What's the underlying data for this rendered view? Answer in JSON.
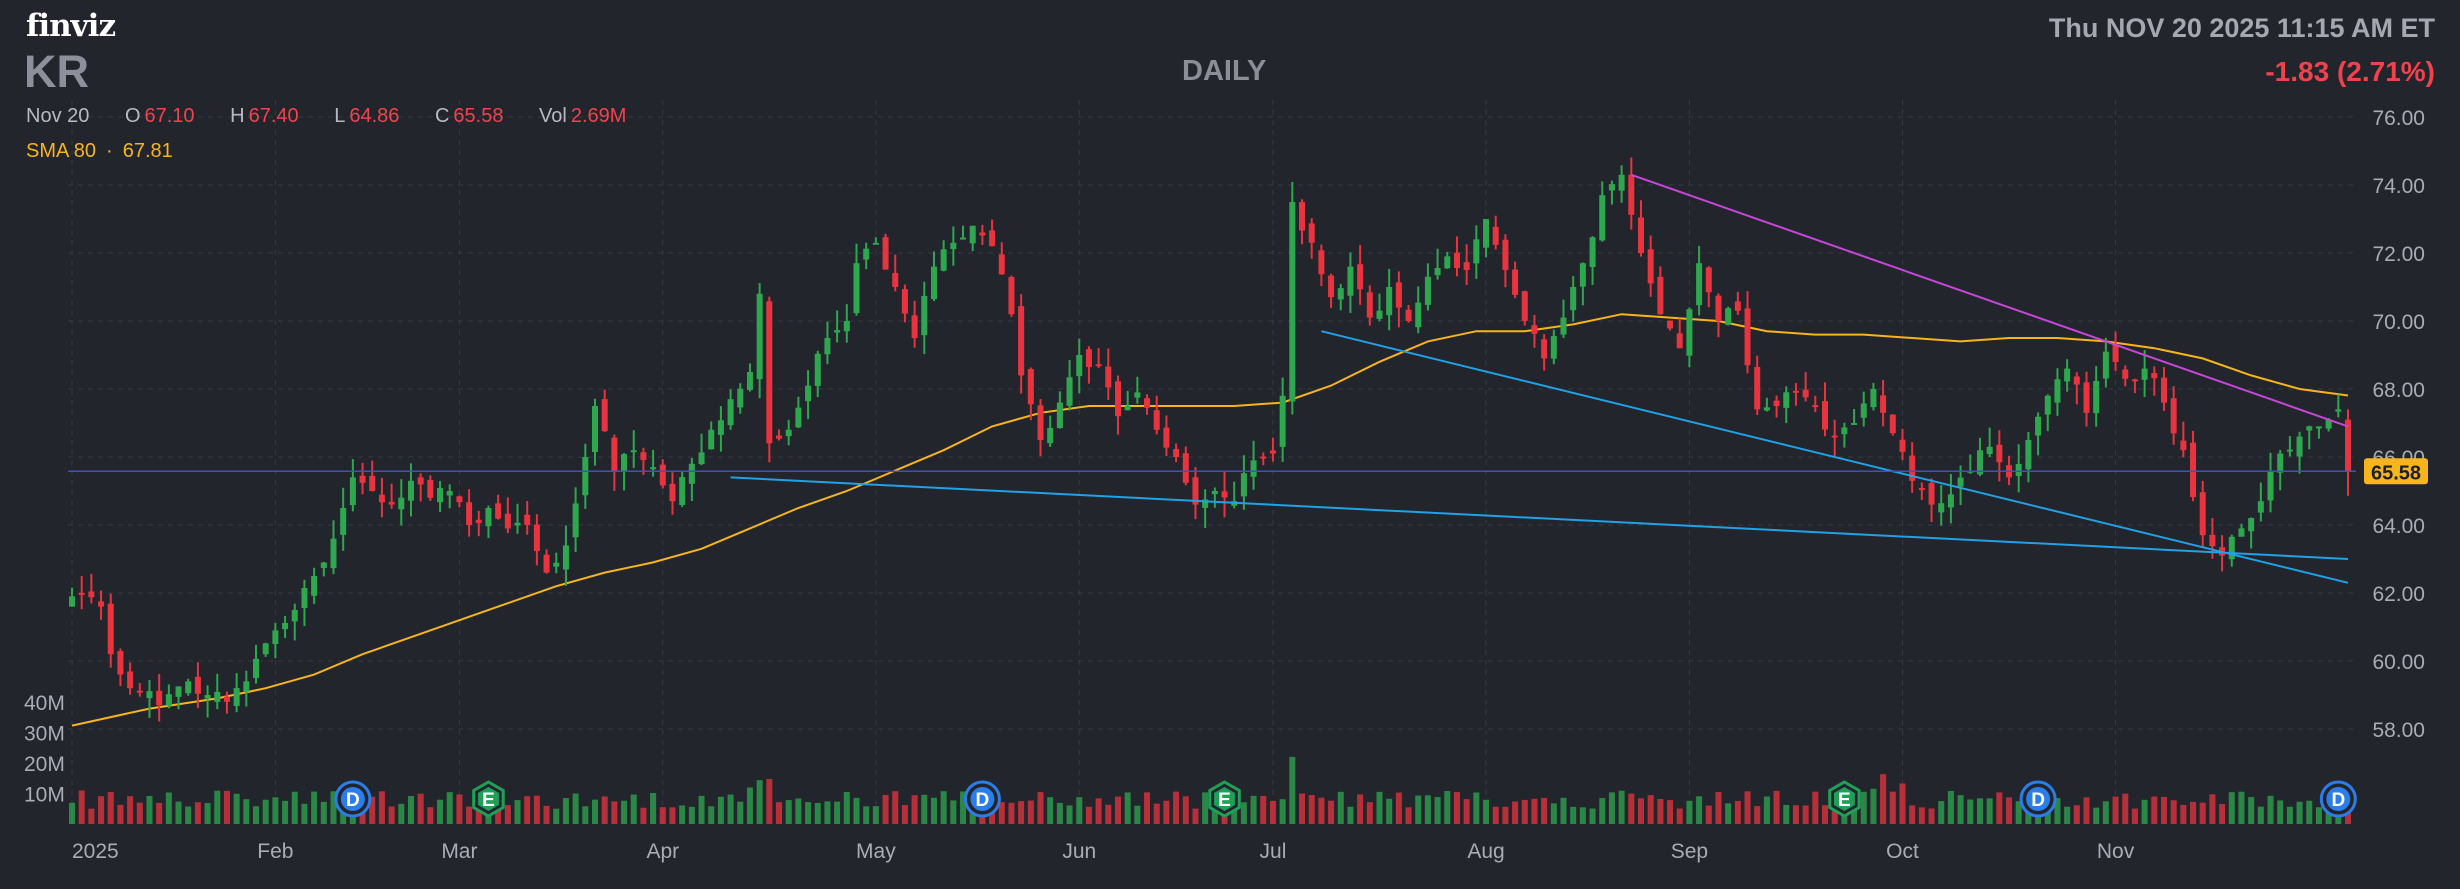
{
  "header": {
    "logo": "finviz",
    "ticker": "KR",
    "period": "DAILY",
    "datetime": "Thu NOV 20 2025 11:15 AM ET",
    "change": "-1.83 (2.71%)",
    "ohlc": {
      "date": "Nov 20",
      "open_label": "O",
      "open": "67.10",
      "high_label": "H",
      "high": "67.40",
      "low_label": "L",
      "low": "64.86",
      "close_label": "C",
      "close": "65.58",
      "vol_label": "Vol",
      "vol": "2.69M"
    },
    "sma": {
      "label": "SMA 80",
      "value": "67.81"
    }
  },
  "colors": {
    "background": "#23252d",
    "grid": "#363944",
    "up": "#2ea84f",
    "down": "#e8343f",
    "sma": "#f6b51d",
    "trendline_blue": "#21a1e6",
    "trendline_magenta": "#c546d8",
    "price_line": "#3f4fc4",
    "price_tag": "#f6b51d",
    "dividend_badge": "#2b7de9",
    "earnings_badge": "#1fa058"
  },
  "chart_data": {
    "type": "candlestick",
    "y_axis": {
      "min": 56.5,
      "max": 76.5,
      "ticks": [
        76,
        74,
        72,
        70,
        68,
        66,
        64,
        62,
        60,
        58
      ],
      "tick_labels": [
        "76.00",
        "74.00",
        "72.00",
        "70.00",
        "68.00",
        "66.00",
        "64.00",
        "62.00",
        "60.00",
        "58.00"
      ]
    },
    "volume_axis": {
      "labels": [
        "40M",
        "30M",
        "20M",
        "10M"
      ],
      "values": [
        40,
        30,
        20,
        10
      ],
      "unit": "M"
    },
    "x_axis": {
      "labels": [
        "2025",
        "Feb",
        "Mar",
        "Apr",
        "May",
        "Jun",
        "Jul",
        "Aug",
        "Sep",
        "Oct",
        "Nov"
      ]
    },
    "last_price": 65.58,
    "last_price_label": "65.58",
    "anchors": [
      [
        0,
        61.9
      ],
      [
        1,
        62.0
      ],
      [
        3,
        61.6
      ],
      [
        4,
        60.2
      ],
      [
        6,
        59.2
      ],
      [
        9,
        58.7
      ],
      [
        12,
        59.4
      ],
      [
        14,
        59.0
      ],
      [
        16,
        58.8
      ],
      [
        18,
        59.4
      ],
      [
        21,
        60.9
      ],
      [
        23,
        61.5
      ],
      [
        25,
        62.5
      ],
      [
        27,
        63.6
      ],
      [
        28,
        64.5
      ],
      [
        29,
        65.4
      ],
      [
        31,
        65.0
      ],
      [
        33,
        64.6
      ],
      [
        35,
        65.3
      ],
      [
        37,
        64.8
      ],
      [
        39,
        65.0
      ],
      [
        41,
        64.0
      ],
      [
        43,
        64.5
      ],
      [
        45,
        63.9
      ],
      [
        47,
        64.0
      ],
      [
        49,
        62.6
      ],
      [
        51,
        63.4
      ],
      [
        53,
        66.0
      ],
      [
        54,
        67.5
      ],
      [
        56,
        65.6
      ],
      [
        58,
        66.2
      ],
      [
        60,
        65.7
      ],
      [
        62,
        64.7
      ],
      [
        64,
        65.8
      ],
      [
        66,
        66.8
      ],
      [
        68,
        67.7
      ],
      [
        70,
        68.5
      ],
      [
        71,
        70.8
      ],
      [
        72,
        66.4
      ],
      [
        74,
        66.8
      ],
      [
        76,
        68.1
      ],
      [
        78,
        69.5
      ],
      [
        80,
        70.0
      ],
      [
        81,
        71.7
      ],
      [
        83,
        72.3
      ],
      [
        85,
        71.0
      ],
      [
        87,
        69.5
      ],
      [
        89,
        71.6
      ],
      [
        91,
        72.3
      ],
      [
        93,
        72.8
      ],
      [
        95,
        72.2
      ],
      [
        97,
        70.2
      ],
      [
        98,
        68.4
      ],
      [
        100,
        66.5
      ],
      [
        102,
        67.6
      ],
      [
        104,
        69.0
      ],
      [
        106,
        68.7
      ],
      [
        108,
        67.2
      ],
      [
        110,
        67.9
      ],
      [
        112,
        66.8
      ],
      [
        114,
        66.0
      ],
      [
        116,
        64.6
      ],
      [
        118,
        65.0
      ],
      [
        120,
        64.7
      ],
      [
        122,
        65.9
      ],
      [
        124,
        66.1
      ],
      [
        125,
        67.8
      ],
      [
        126,
        73.5
      ],
      [
        128,
        72.3
      ],
      [
        130,
        70.7
      ],
      [
        132,
        71.6
      ],
      [
        134,
        70.1
      ],
      [
        136,
        71.0
      ],
      [
        138,
        70.0
      ],
      [
        140,
        71.3
      ],
      [
        142,
        71.9
      ],
      [
        144,
        71.5
      ],
      [
        146,
        73.0
      ],
      [
        148,
        71.5
      ],
      [
        150,
        70.0
      ],
      [
        152,
        68.9
      ],
      [
        154,
        70.1
      ],
      [
        156,
        71.7
      ],
      [
        158,
        73.7
      ],
      [
        160,
        74.3
      ],
      [
        162,
        72.0
      ],
      [
        164,
        70.2
      ],
      [
        166,
        69.2
      ],
      [
        168,
        71.7
      ],
      [
        170,
        70.0
      ],
      [
        172,
        70.3
      ],
      [
        174,
        67.4
      ],
      [
        176,
        67.5
      ],
      [
        178,
        67.9
      ],
      [
        180,
        67.5
      ],
      [
        182,
        66.6
      ],
      [
        184,
        67.0
      ],
      [
        186,
        68.0
      ],
      [
        188,
        66.7
      ],
      [
        190,
        65.3
      ],
      [
        192,
        64.6
      ],
      [
        194,
        64.9
      ],
      [
        196,
        65.6
      ],
      [
        198,
        66.3
      ],
      [
        200,
        65.4
      ],
      [
        202,
        66.5
      ],
      [
        204,
        67.8
      ],
      [
        206,
        68.6
      ],
      [
        208,
        67.3
      ],
      [
        210,
        69.1
      ],
      [
        212,
        68.3
      ],
      [
        214,
        68.6
      ],
      [
        216,
        67.6
      ],
      [
        218,
        66.2
      ],
      [
        220,
        63.7
      ],
      [
        222,
        63.1
      ],
      [
        224,
        63.9
      ],
      [
        226,
        64.7
      ],
      [
        228,
        66.1
      ],
      [
        230,
        66.6
      ],
      [
        232,
        66.9
      ],
      [
        234,
        67.4
      ],
      [
        235,
        65.58
      ]
    ],
    "dividend_events": [
      29,
      94,
      203,
      234
    ],
    "earnings_events": [
      43,
      119,
      183
    ],
    "sma_curve": [
      [
        0,
        58.1
      ],
      [
        8,
        58.6
      ],
      [
        15,
        58.9
      ],
      [
        20,
        59.2
      ],
      [
        25,
        59.6
      ],
      [
        30,
        60.2
      ],
      [
        35,
        60.7
      ],
      [
        40,
        61.2
      ],
      [
        45,
        61.7
      ],
      [
        50,
        62.2
      ],
      [
        55,
        62.6
      ],
      [
        60,
        62.9
      ],
      [
        65,
        63.3
      ],
      [
        70,
        63.9
      ],
      [
        75,
        64.5
      ],
      [
        80,
        65.0
      ],
      [
        85,
        65.6
      ],
      [
        90,
        66.2
      ],
      [
        95,
        66.9
      ],
      [
        100,
        67.3
      ],
      [
        105,
        67.5
      ],
      [
        110,
        67.5
      ],
      [
        115,
        67.5
      ],
      [
        120,
        67.5
      ],
      [
        125,
        67.6
      ],
      [
        130,
        68.1
      ],
      [
        135,
        68.8
      ],
      [
        140,
        69.4
      ],
      [
        145,
        69.7
      ],
      [
        150,
        69.7
      ],
      [
        155,
        69.9
      ],
      [
        160,
        70.2
      ],
      [
        165,
        70.1
      ],
      [
        170,
        70.0
      ],
      [
        175,
        69.7
      ],
      [
        180,
        69.6
      ],
      [
        185,
        69.6
      ],
      [
        190,
        69.5
      ],
      [
        195,
        69.4
      ],
      [
        200,
        69.5
      ],
      [
        205,
        69.5
      ],
      [
        210,
        69.4
      ],
      [
        215,
        69.2
      ],
      [
        220,
        68.9
      ],
      [
        225,
        68.4
      ],
      [
        230,
        68.0
      ],
      [
        235,
        67.81
      ]
    ],
    "trendlines": [
      {
        "color": "trendline_blue",
        "from": [
          68,
          65.4
        ],
        "to": [
          235,
          63.0
        ]
      },
      {
        "color": "trendline_blue",
        "from": [
          129,
          69.7
        ],
        "to": [
          235,
          62.3
        ]
      },
      {
        "color": "trendline_magenta",
        "from": [
          161,
          74.3
        ],
        "to": [
          235,
          66.9
        ]
      }
    ]
  }
}
